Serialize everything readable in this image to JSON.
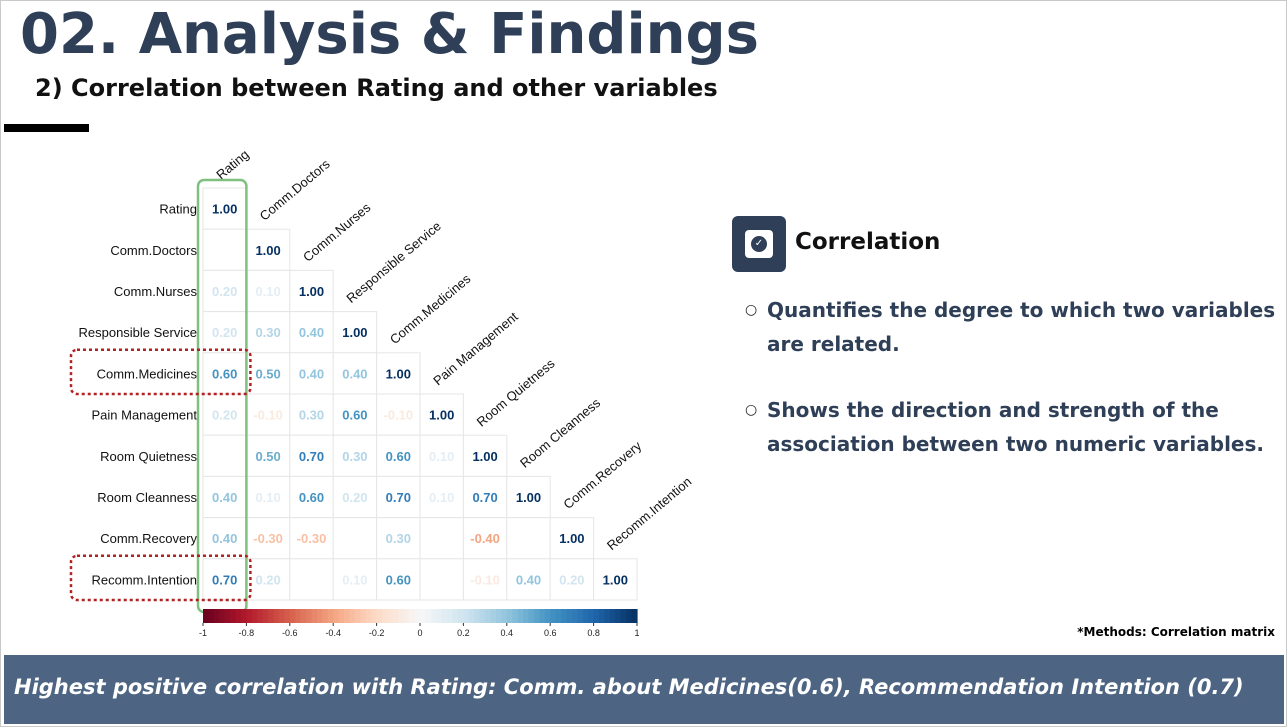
{
  "header": {
    "title": "02. Analysis & Findings",
    "subtitle": "2) Correlation between Rating and other variables"
  },
  "chart_data": {
    "type": "heatmap",
    "variables": [
      "Rating",
      "Comm.Doctors",
      "Comm.Nurses",
      "Responsible Service",
      "Comm.Medicines",
      "Pain Management",
      "Room Quietness",
      "Room Cleanness",
      "Comm.Recovery",
      "Recomm.Intention"
    ],
    "matrix": [
      [
        1.0,
        null,
        null,
        null,
        null,
        null,
        null,
        null,
        null,
        null
      ],
      [
        null,
        1.0,
        null,
        null,
        null,
        null,
        null,
        null,
        null,
        null
      ],
      [
        0.2,
        0.1,
        1.0,
        null,
        null,
        null,
        null,
        null,
        null,
        null
      ],
      [
        0.2,
        0.3,
        0.4,
        1.0,
        null,
        null,
        null,
        null,
        null,
        null
      ],
      [
        0.6,
        0.5,
        0.4,
        0.4,
        1.0,
        null,
        null,
        null,
        null,
        null
      ],
      [
        0.2,
        -0.1,
        0.3,
        0.6,
        -0.1,
        1.0,
        null,
        null,
        null,
        null
      ],
      [
        null,
        0.5,
        0.7,
        0.3,
        0.6,
        0.1,
        1.0,
        null,
        null,
        null
      ],
      [
        0.4,
        0.1,
        0.6,
        0.2,
        0.7,
        0.1,
        0.7,
        1.0,
        null,
        null
      ],
      [
        0.4,
        -0.3,
        -0.3,
        null,
        0.3,
        null,
        -0.4,
        null,
        1.0,
        null
      ],
      [
        0.7,
        0.2,
        null,
        0.1,
        0.6,
        null,
        -0.1,
        0.4,
        0.2,
        1.0
      ]
    ],
    "colorbar": {
      "range": [
        -1,
        1
      ],
      "ticks": [
        "-1",
        "-0.8",
        "-0.6",
        "-0.4",
        "-0.2",
        "0",
        "0.2",
        "0.4",
        "0.6",
        "0.8",
        "1"
      ],
      "low_color": "#67001f",
      "mid_color": "#f7f7f7",
      "high_color": "#053061"
    },
    "highlight_column": "Rating",
    "highlight_rows": [
      "Comm.Medicines",
      "Recomm.Intention"
    ],
    "highlight_column_color": "#7fbf7f",
    "highlight_row_color": "#b22222"
  },
  "info": {
    "heading": "Correlation",
    "bullets": [
      "Quantifies the degree to which two variables are related.",
      "Shows the direction and strength of the association between two numeric variables."
    ],
    "bullet_marker": "○",
    "method_note": "*Methods: Correlation matrix"
  },
  "footer": {
    "text": "Highest positive correlation with Rating: Comm. about Medicines(0.6), Recommendation Intention (0.7)"
  },
  "colors": {
    "title": "#2e3f57",
    "footer_bg": "#4d6583",
    "accent_icon": "#2e3f57"
  },
  "icons": {
    "correlation_badge": "check-circle-icon"
  }
}
